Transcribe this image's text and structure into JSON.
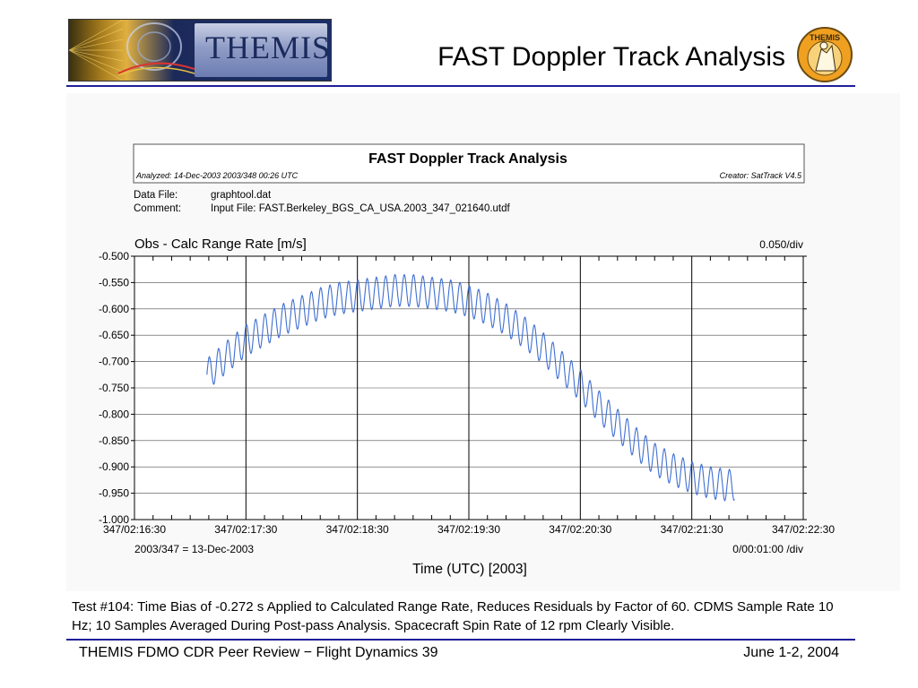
{
  "header": {
    "logo_text": "THEMIS",
    "title": "FAST Doppler Track Analysis",
    "badge_text": "THEMIS"
  },
  "report": {
    "title": "FAST Doppler Track Analysis",
    "analyzed": "Analyzed: 14-Dec-2003 2003/348 00:26 UTC",
    "creator": "Creator: SatTrack V4.5",
    "data_file_label": "Data File:",
    "data_file_value": "graphtool.dat",
    "comment_label": "Comment:",
    "comment_value": "Input File: FAST.Berkeley_BGS_CA_USA.2003_347_021640.utdf"
  },
  "chart_data": {
    "type": "line",
    "title": "Obs - Calc Range Rate [m/s]",
    "y_scale_label": "0.050/div",
    "xlabel": "Time (UTC) [2003]",
    "x_note": "2003/347 = 13-Dec-2003",
    "x_scale_label": "0/00:01:00 /div",
    "x_ticks": [
      "347/02:16:30",
      "347/02:17:30",
      "347/02:18:30",
      "347/02:19:30",
      "347/02:20:30",
      "347/02:21:30",
      "347/02:22:30"
    ],
    "y_ticks": [
      "-0.500",
      "-0.550",
      "-0.600",
      "-0.650",
      "-0.700",
      "-0.750",
      "-0.800",
      "-0.850",
      "-0.900",
      "-0.950",
      "-1.000"
    ],
    "ylim": [
      -1.0,
      -0.5
    ],
    "xlim_seconds": [
      0,
      360
    ],
    "grid": true,
    "series": [
      {
        "color": "#3f6fd1",
        "trend_x": [
          39,
          50,
          60,
          70,
          80,
          90,
          100,
          110,
          120,
          130,
          140,
          150,
          160,
          170,
          180,
          190,
          200,
          210,
          220,
          230,
          240,
          250,
          260,
          270,
          280,
          290,
          300,
          310,
          320,
          323
        ],
        "trend_y": [
          -0.725,
          -0.69,
          -0.66,
          -0.64,
          -0.62,
          -0.605,
          -0.59,
          -0.58,
          -0.575,
          -0.57,
          -0.565,
          -0.565,
          -0.57,
          -0.575,
          -0.585,
          -0.6,
          -0.62,
          -0.645,
          -0.675,
          -0.71,
          -0.745,
          -0.785,
          -0.82,
          -0.855,
          -0.885,
          -0.905,
          -0.92,
          -0.93,
          -0.935,
          -0.933
        ],
        "spin_period_s": 5,
        "spin_amplitude": 0.03
      }
    ]
  },
  "caption": "Test #104: Time Bias of -0.272 s Applied to Calculated Range Rate, Reduces Residuals by Factor of 60. CDMS Sample Rate 10 Hz; 10 Samples Averaged During Post-pass Analysis. Spacecraft Spin Rate of 12 rpm Clearly Visible.",
  "footer": {
    "left": "THEMIS FDMO CDR Peer Review − Flight Dynamics 39",
    "right": "June 1-2, 2004"
  }
}
